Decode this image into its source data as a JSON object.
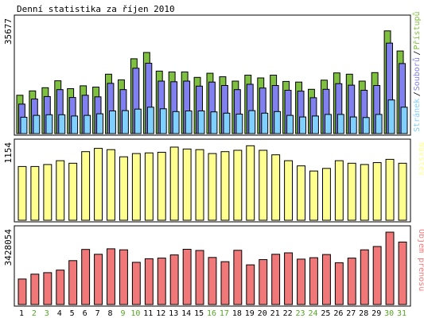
{
  "colors": {
    "background": "#ffffff",
    "panel_border": "#000000",
    "hits": "#80c040",
    "files": "#8080f0",
    "pages": "#80d0ff",
    "visits": "#ffff90",
    "volume": "#f07878",
    "weekend_label": "#55a524",
    "weekday_label": "#000000"
  },
  "chart_data": {
    "type": "bar",
    "title": "Denní statistika za říjen 2010",
    "categories": [
      "1",
      "2",
      "3",
      "4",
      "5",
      "6",
      "7",
      "8",
      "9",
      "10",
      "11",
      "12",
      "13",
      "14",
      "15",
      "16",
      "17",
      "18",
      "19",
      "20",
      "21",
      "22",
      "23",
      "24",
      "25",
      "26",
      "27",
      "28",
      "29",
      "30",
      "31"
    ],
    "weekend_days": [
      "2",
      "3",
      "9",
      "10",
      "16",
      "17",
      "23",
      "24",
      "30",
      "31"
    ],
    "panels": [
      {
        "id": "hits",
        "ymax_label": "35677",
        "ymax": 35677,
        "legend": [
          "Stránek",
          "Souborů",
          "Přístupů"
        ],
        "series": [
          {
            "name": "Přístupů",
            "color_key": "hits",
            "values": [
              12200,
              13600,
              14600,
              16800,
              14300,
              15200,
              14800,
              18900,
              17100,
              23800,
              25800,
              19900,
              19600,
              19600,
              17900,
              19200,
              18100,
              16700,
              18600,
              17700,
              18600,
              16600,
              16400,
              14100,
              17000,
              19300,
              18900,
              16700,
              19400,
              32700,
              26300
            ]
          },
          {
            "name": "Souborů",
            "color_key": "files",
            "values": [
              9400,
              11000,
              11800,
              14000,
              11500,
              12200,
              11700,
              16000,
              14000,
              20800,
              22400,
              16700,
              16500,
              16700,
              15100,
              16400,
              15300,
              14000,
              15700,
              14500,
              15300,
              13800,
              13500,
              11400,
              14100,
              15900,
              15400,
              13800,
              15300,
              28800,
              22300
            ]
          },
          {
            "name": "Stránek",
            "color_key": "pages",
            "values": [
              5200,
              5800,
              6000,
              6000,
              5600,
              5800,
              6300,
              7200,
              7300,
              7800,
              8400,
              7900,
              7000,
              7200,
              7200,
              6900,
              6500,
              6200,
              7300,
              6500,
              7000,
              5800,
              5300,
              5600,
              6100,
              6100,
              5300,
              5100,
              6100,
              10700,
              8400
            ]
          }
        ]
      },
      {
        "id": "visits",
        "ymax_label": "1154",
        "ymax": 1154,
        "legend": [
          "Návštěv"
        ],
        "series": [
          {
            "name": "Návštěv",
            "color_key": "visits",
            "values": [
              830,
              830,
              860,
              920,
              880,
              1060,
              1110,
              1090,
              980,
              1030,
              1040,
              1050,
              1130,
              1100,
              1090,
              1030,
              1060,
              1080,
              1150,
              1080,
              1010,
              920,
              840,
              760,
              800,
              920,
              880,
              860,
              890,
              940,
              880
            ]
          }
        ]
      },
      {
        "id": "volume",
        "ymax_label": "3428054",
        "ymax": 3428054,
        "legend": [
          "Objem přenosu"
        ],
        "series": [
          {
            "name": "Objem přenosu",
            "color_key": "volume",
            "values": [
              1210000,
              1440000,
              1510000,
              1630000,
              2080000,
              2610000,
              2380000,
              2640000,
              2590000,
              2000000,
              2170000,
              2200000,
              2350000,
              2620000,
              2560000,
              2230000,
              2030000,
              2570000,
              1880000,
              2130000,
              2380000,
              2450000,
              2150000,
              2220000,
              2370000,
              1980000,
              2200000,
              2590000,
              2750000,
              3428054,
              2960000
            ]
          }
        ]
      }
    ]
  }
}
